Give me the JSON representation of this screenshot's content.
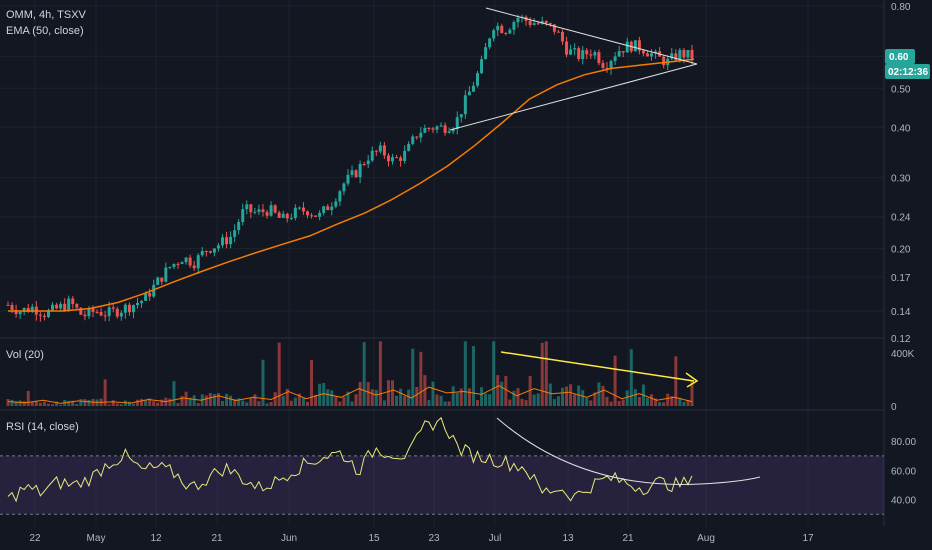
{
  "chart_data": {
    "type": "candlestick",
    "symbol_line": "OMM, 4h, TSXV",
    "ema_label": "EMA (50, close)",
    "vol_label": "Vol (20)",
    "rsi_label": "RSI (14, close)",
    "last_price": "0.60",
    "countdown": "02:12:36",
    "price_ticks": [
      "0.80",
      "0.60",
      "0.50",
      "0.40",
      "0.30",
      "0.24",
      "0.20",
      "0.17",
      "0.14",
      "0.12"
    ],
    "vol_ticks": [
      "400K",
      "0"
    ],
    "rsi_ticks": [
      "80.00",
      "60.00",
      "40.00"
    ],
    "x_ticks": [
      "22",
      "May",
      "12",
      "21",
      "Jun",
      "15",
      "23",
      "Jul",
      "13",
      "21",
      "Aug",
      "17"
    ],
    "rsi_band": [
      30,
      70
    ],
    "colors": {
      "up": "#26a69a",
      "down": "#ef5350",
      "ema": "#f57c00",
      "rsi": "#e8e87a",
      "band": "#7e57c2",
      "annotation": "#e0e0e0",
      "volume_arrow": "#ffeb3b",
      "badge": "#26a69a"
    },
    "price_path": [
      0.145,
      0.14,
      0.143,
      0.138,
      0.142,
      0.147,
      0.136,
      0.14,
      0.138,
      0.141,
      0.145,
      0.15,
      0.165,
      0.18,
      0.19,
      0.185,
      0.2,
      0.205,
      0.215,
      0.25,
      0.245,
      0.25,
      0.235,
      0.245,
      0.25,
      0.24,
      0.26,
      0.29,
      0.31,
      0.34,
      0.35,
      0.33,
      0.345,
      0.39,
      0.4,
      0.4,
      0.41,
      0.48,
      0.56,
      0.72,
      0.7,
      0.75,
      0.73,
      0.72,
      0.7,
      0.62,
      0.6,
      0.62,
      0.57,
      0.62,
      0.64,
      0.63,
      0.6,
      0.58,
      0.61,
      0.6
    ],
    "ema_path": [
      0.14,
      0.14,
      0.14,
      0.142,
      0.147,
      0.155,
      0.165,
      0.175,
      0.185,
      0.195,
      0.205,
      0.215,
      0.23,
      0.245,
      0.265,
      0.29,
      0.32,
      0.36,
      0.41,
      0.47,
      0.51,
      0.54,
      0.56,
      0.57,
      0.58,
      0.59
    ],
    "rsi_path": [
      40,
      48,
      45,
      52,
      50,
      55,
      65,
      70,
      60,
      62,
      58,
      48,
      55,
      62,
      55,
      48,
      52,
      60,
      65,
      70,
      72,
      60,
      75,
      72,
      70,
      90,
      95,
      75,
      70,
      68,
      65,
      62,
      45,
      48,
      42,
      50,
      55,
      52,
      48,
      52,
      50,
      52
    ],
    "volume_path": [
      30,
      22,
      40,
      18,
      35,
      25,
      28,
      20,
      45,
      30,
      55,
      40,
      70,
      38,
      60,
      45,
      100,
      50,
      85,
      60,
      120,
      75,
      110,
      55,
      130,
      90,
      100,
      80,
      140,
      70,
      120,
      85,
      95,
      60,
      110,
      50,
      85,
      40,
      60,
      30
    ]
  }
}
